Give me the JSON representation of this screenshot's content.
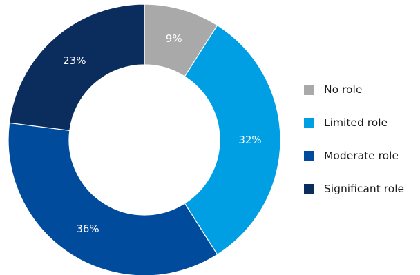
{
  "chart_data": {
    "type": "pie",
    "variant": "donut",
    "categories": [
      "No role",
      "Limited role",
      "Moderate role",
      "Significant role"
    ],
    "values": [
      9,
      32,
      36,
      23
    ],
    "labels": [
      "9%",
      "32%",
      "36%",
      "23%"
    ],
    "colors": [
      "#a9a9a9",
      "#009fe3",
      "#004b9c",
      "#0a2d5e"
    ],
    "legend_position": "right",
    "start": "top, clockwise"
  }
}
